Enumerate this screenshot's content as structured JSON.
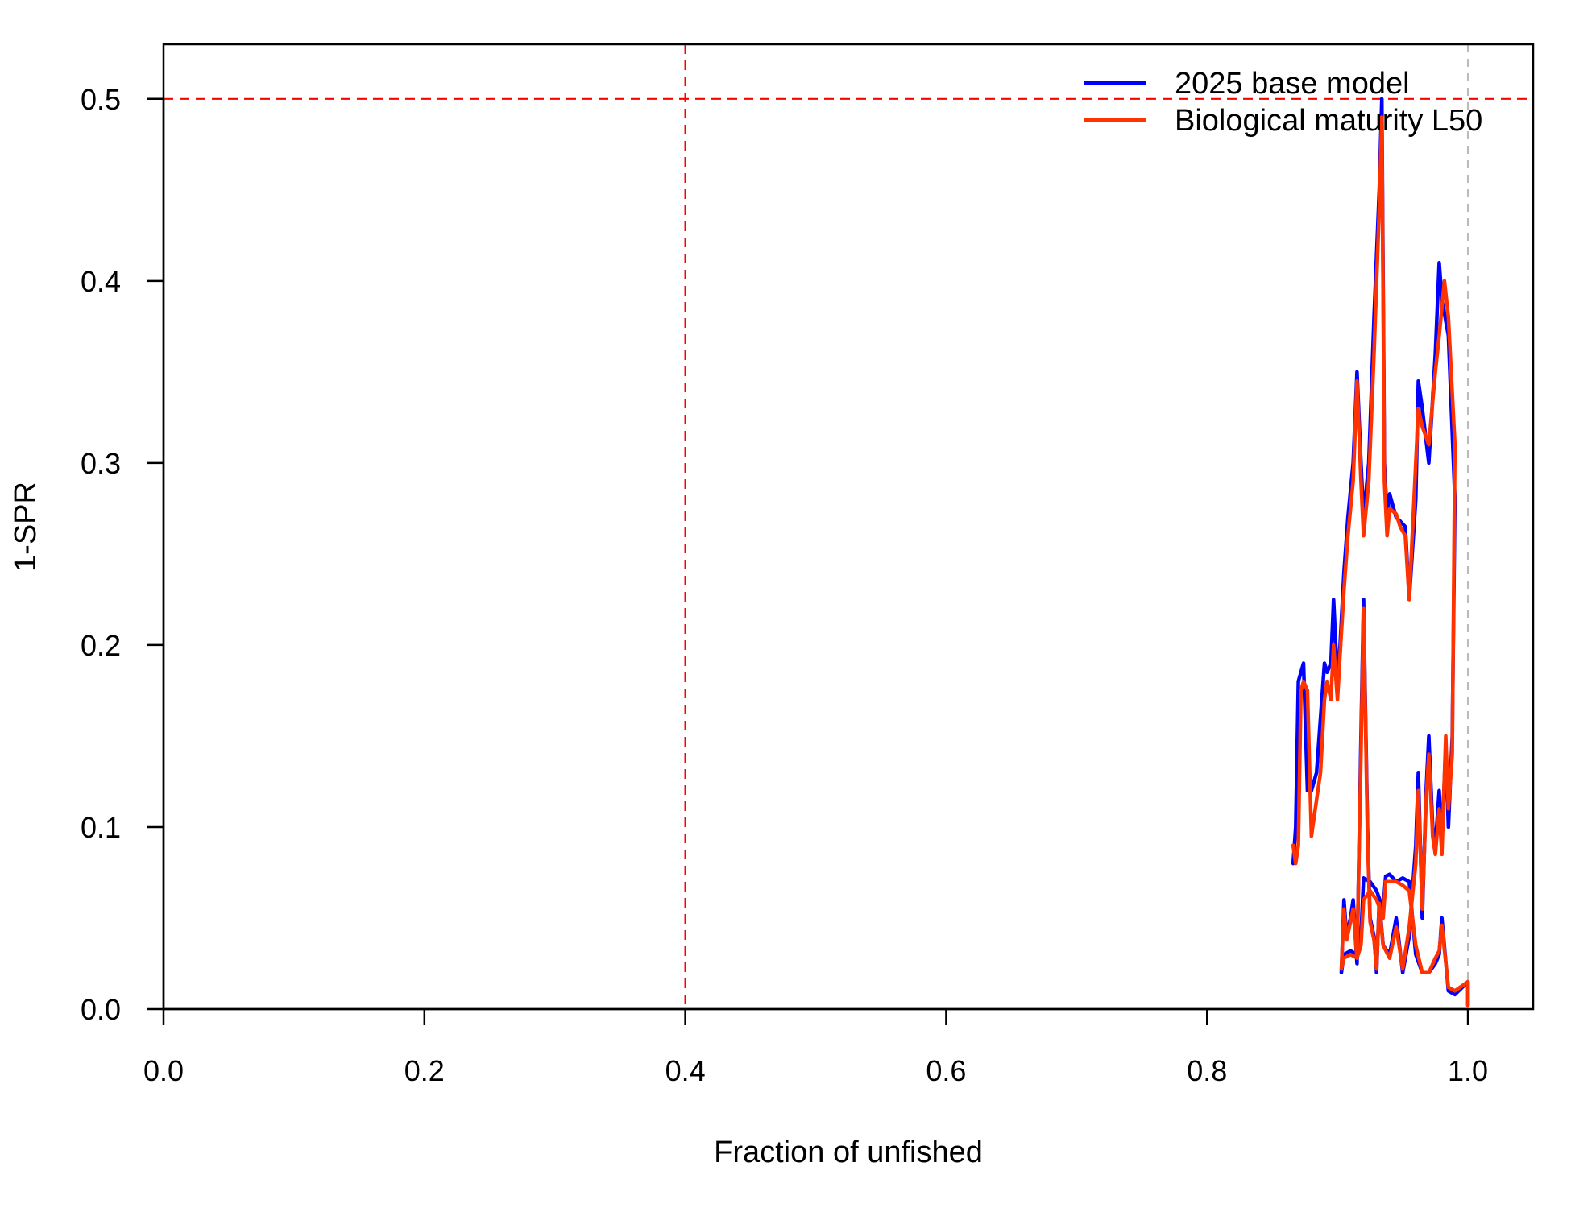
{
  "chart_data": {
    "type": "line",
    "xlabel": "Fraction of unfished",
    "ylabel": "1-SPR",
    "xlim": [
      0,
      1.05
    ],
    "ylim": [
      0,
      0.53
    ],
    "x_ticks": [
      0.0,
      0.2,
      0.4,
      0.6,
      0.8,
      1.0
    ],
    "x_tick_labels": [
      "0.0",
      "0.2",
      "0.4",
      "0.6",
      "0.8",
      "1.0"
    ],
    "y_ticks": [
      0.0,
      0.1,
      0.2,
      0.3,
      0.4,
      0.5
    ],
    "y_tick_labels": [
      "0.0",
      "0.1",
      "0.2",
      "0.3",
      "0.4",
      "0.5"
    ],
    "legend_position": "top-right",
    "reference_lines": [
      {
        "orientation": "vertical",
        "value": 0.4,
        "color": "#ff0000",
        "style": "dashed"
      },
      {
        "orientation": "horizontal",
        "value": 0.5,
        "color": "#ff0000",
        "style": "dashed"
      },
      {
        "orientation": "vertical",
        "value": 1.0,
        "color": "#bbbbbb",
        "style": "dashed"
      }
    ],
    "series": [
      {
        "name": "2025 base model",
        "color": "#0000ff",
        "points": [
          [
            1.0,
            0.002
          ],
          [
            1.0,
            0.015
          ],
          [
            0.99,
            0.008
          ],
          [
            0.985,
            0.01
          ],
          [
            0.98,
            0.05
          ],
          [
            0.978,
            0.03
          ],
          [
            0.975,
            0.025
          ],
          [
            0.97,
            0.02
          ],
          [
            0.965,
            0.02
          ],
          [
            0.96,
            0.03
          ],
          [
            0.955,
            0.07
          ],
          [
            0.95,
            0.072
          ],
          [
            0.945,
            0.07
          ],
          [
            0.94,
            0.074
          ],
          [
            0.937,
            0.073
          ],
          [
            0.935,
            0.055
          ],
          [
            0.93,
            0.065
          ],
          [
            0.925,
            0.07
          ],
          [
            0.92,
            0.072
          ],
          [
            0.918,
            0.04
          ],
          [
            0.915,
            0.03
          ],
          [
            0.91,
            0.032
          ],
          [
            0.905,
            0.03
          ],
          [
            0.903,
            0.02
          ],
          [
            0.905,
            0.06
          ],
          [
            0.907,
            0.04
          ],
          [
            0.91,
            0.05
          ],
          [
            0.912,
            0.06
          ],
          [
            0.915,
            0.025
          ],
          [
            0.918,
            0.15
          ],
          [
            0.92,
            0.225
          ],
          [
            0.923,
            0.1
          ],
          [
            0.925,
            0.05
          ],
          [
            0.928,
            0.04
          ],
          [
            0.93,
            0.02
          ],
          [
            0.932,
            0.06
          ],
          [
            0.935,
            0.035
          ],
          [
            0.94,
            0.03
          ],
          [
            0.945,
            0.05
          ],
          [
            0.95,
            0.02
          ],
          [
            0.955,
            0.04
          ],
          [
            0.96,
            0.09
          ],
          [
            0.962,
            0.13
          ],
          [
            0.965,
            0.05
          ],
          [
            0.968,
            0.12
          ],
          [
            0.97,
            0.15
          ],
          [
            0.973,
            0.1
          ],
          [
            0.975,
            0.09
          ],
          [
            0.978,
            0.12
          ],
          [
            0.98,
            0.09
          ],
          [
            0.983,
            0.145
          ],
          [
            0.985,
            0.1
          ],
          [
            0.988,
            0.15
          ],
          [
            0.99,
            0.28
          ],
          [
            0.985,
            0.37
          ],
          [
            0.98,
            0.39
          ],
          [
            0.978,
            0.41
          ],
          [
            0.975,
            0.36
          ],
          [
            0.97,
            0.3
          ],
          [
            0.965,
            0.33
          ],
          [
            0.962,
            0.345
          ],
          [
            0.96,
            0.28
          ],
          [
            0.955,
            0.225
          ],
          [
            0.952,
            0.265
          ],
          [
            0.948,
            0.268
          ],
          [
            0.945,
            0.27
          ],
          [
            0.94,
            0.283
          ],
          [
            0.938,
            0.27
          ],
          [
            0.936,
            0.3
          ],
          [
            0.934,
            0.5
          ],
          [
            0.932,
            0.45
          ],
          [
            0.928,
            0.38
          ],
          [
            0.924,
            0.3
          ],
          [
            0.92,
            0.27
          ],
          [
            0.918,
            0.3
          ],
          [
            0.915,
            0.35
          ],
          [
            0.912,
            0.3
          ],
          [
            0.908,
            0.27
          ],
          [
            0.905,
            0.24
          ],
          [
            0.902,
            0.2
          ],
          [
            0.9,
            0.18
          ],
          [
            0.897,
            0.225
          ],
          [
            0.895,
            0.19
          ],
          [
            0.892,
            0.185
          ],
          [
            0.89,
            0.19
          ],
          [
            0.887,
            0.16
          ],
          [
            0.884,
            0.13
          ],
          [
            0.88,
            0.12
          ],
          [
            0.877,
            0.12
          ],
          [
            0.874,
            0.19
          ],
          [
            0.872,
            0.185
          ],
          [
            0.87,
            0.18
          ],
          [
            0.868,
            0.1
          ],
          [
            0.866,
            0.08
          ]
        ]
      },
      {
        "name": "Biological maturity L50",
        "color": "#ff3300",
        "points": [
          [
            1.0,
            0.002
          ],
          [
            1.0,
            0.015
          ],
          [
            0.99,
            0.01
          ],
          [
            0.985,
            0.012
          ],
          [
            0.98,
            0.046
          ],
          [
            0.978,
            0.032
          ],
          [
            0.975,
            0.028
          ],
          [
            0.97,
            0.02
          ],
          [
            0.965,
            0.02
          ],
          [
            0.96,
            0.035
          ],
          [
            0.955,
            0.065
          ],
          [
            0.95,
            0.068
          ],
          [
            0.945,
            0.07
          ],
          [
            0.94,
            0.07
          ],
          [
            0.937,
            0.07
          ],
          [
            0.935,
            0.05
          ],
          [
            0.93,
            0.06
          ],
          [
            0.925,
            0.065
          ],
          [
            0.92,
            0.06
          ],
          [
            0.918,
            0.035
          ],
          [
            0.915,
            0.028
          ],
          [
            0.91,
            0.03
          ],
          [
            0.905,
            0.028
          ],
          [
            0.903,
            0.022
          ],
          [
            0.905,
            0.055
          ],
          [
            0.907,
            0.038
          ],
          [
            0.91,
            0.048
          ],
          [
            0.912,
            0.055
          ],
          [
            0.915,
            0.028
          ],
          [
            0.918,
            0.14
          ],
          [
            0.92,
            0.22
          ],
          [
            0.923,
            0.095
          ],
          [
            0.925,
            0.048
          ],
          [
            0.928,
            0.038
          ],
          [
            0.93,
            0.022
          ],
          [
            0.932,
            0.058
          ],
          [
            0.935,
            0.035
          ],
          [
            0.94,
            0.028
          ],
          [
            0.945,
            0.045
          ],
          [
            0.95,
            0.022
          ],
          [
            0.955,
            0.045
          ],
          [
            0.96,
            0.08
          ],
          [
            0.962,
            0.12
          ],
          [
            0.965,
            0.055
          ],
          [
            0.968,
            0.115
          ],
          [
            0.97,
            0.14
          ],
          [
            0.973,
            0.095
          ],
          [
            0.975,
            0.085
          ],
          [
            0.978,
            0.11
          ],
          [
            0.98,
            0.085
          ],
          [
            0.983,
            0.15
          ],
          [
            0.985,
            0.11
          ],
          [
            0.988,
            0.14
          ],
          [
            0.99,
            0.31
          ],
          [
            0.985,
            0.38
          ],
          [
            0.982,
            0.4
          ],
          [
            0.978,
            0.37
          ],
          [
            0.975,
            0.35
          ],
          [
            0.97,
            0.31
          ],
          [
            0.965,
            0.32
          ],
          [
            0.962,
            0.33
          ],
          [
            0.96,
            0.3
          ],
          [
            0.955,
            0.225
          ],
          [
            0.952,
            0.26
          ],
          [
            0.948,
            0.265
          ],
          [
            0.945,
            0.272
          ],
          [
            0.94,
            0.275
          ],
          [
            0.938,
            0.26
          ],
          [
            0.936,
            0.29
          ],
          [
            0.934,
            0.49
          ],
          [
            0.932,
            0.44
          ],
          [
            0.928,
            0.36
          ],
          [
            0.924,
            0.29
          ],
          [
            0.92,
            0.26
          ],
          [
            0.918,
            0.29
          ],
          [
            0.915,
            0.345
          ],
          [
            0.912,
            0.29
          ],
          [
            0.908,
            0.26
          ],
          [
            0.905,
            0.23
          ],
          [
            0.902,
            0.195
          ],
          [
            0.9,
            0.17
          ],
          [
            0.897,
            0.2
          ],
          [
            0.895,
            0.17
          ],
          [
            0.892,
            0.18
          ],
          [
            0.89,
            0.17
          ],
          [
            0.887,
            0.13
          ],
          [
            0.884,
            0.115
          ],
          [
            0.88,
            0.095
          ],
          [
            0.877,
            0.175
          ],
          [
            0.874,
            0.18
          ],
          [
            0.872,
            0.175
          ],
          [
            0.87,
            0.09
          ],
          [
            0.868,
            0.08
          ],
          [
            0.866,
            0.09
          ]
        ]
      }
    ]
  }
}
